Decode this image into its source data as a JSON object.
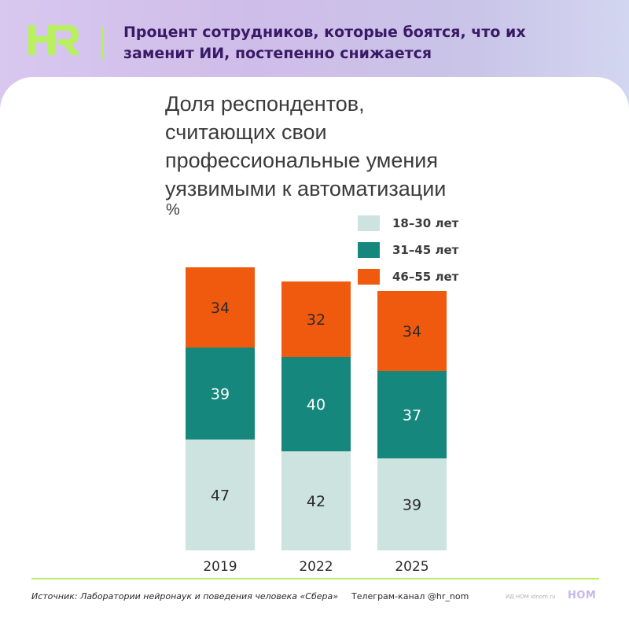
{
  "header": {
    "logo_text": "HR",
    "headline_lines": [
      "Процент сотрудников, которые боятся, что их",
      "заменит ИИ, постепенно снижается"
    ],
    "colors": {
      "logo": "#b9f05f",
      "headline": "#3a1a66"
    }
  },
  "chart_data": {
    "type": "bar",
    "stacked": true,
    "title_lines": [
      "Доля респондентов,",
      "считающих свои",
      "профессиональные умения",
      "уязвимыми к автоматизации"
    ],
    "unit": "%",
    "categories": [
      "2019",
      "2022",
      "2025"
    ],
    "series": [
      {
        "name": "18–30 лет",
        "color": "#cce3df",
        "label_color": "#2b2b2b",
        "values": [
          47,
          42,
          39
        ]
      },
      {
        "name": "31–45 лет",
        "color": "#15877d",
        "label_color": "#ffffff",
        "values": [
          39,
          40,
          37
        ]
      },
      {
        "name": "46–55 лет",
        "color": "#f05a0f",
        "label_color": "#2b2b2b",
        "values": [
          34,
          32,
          34
        ]
      }
    ],
    "legend_position": "top-right",
    "grid": false,
    "ylim": [
      0,
      120
    ]
  },
  "footer": {
    "source": "Источник: Лаборатории нейронаук и поведения человека «Сбера»",
    "telegram": "Телеграм-канал @hr_nom",
    "site": "ИД НОМ idnom.ru",
    "brand": "НОМ"
  }
}
